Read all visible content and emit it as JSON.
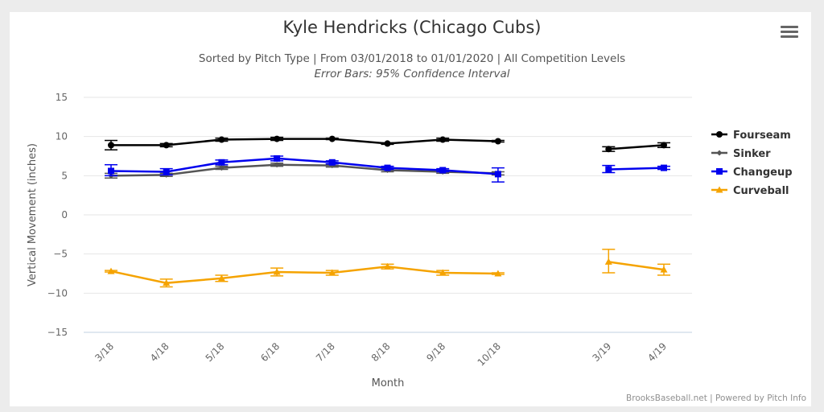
{
  "page": {
    "title": "Kyle Hendricks (Chicago Cubs)",
    "subtitle": "Sorted by Pitch Type | From 03/01/2018 to 01/01/2020 | All Competition Levels",
    "subtitle2": "Error Bars: 95% Confidence Interval",
    "credits": "BrooksBaseball.net | Powered by Pitch Info",
    "menu_icon": "hamburger-menu-icon"
  },
  "chart_data": {
    "type": "line",
    "title": "Kyle Hendricks (Chicago Cubs)",
    "subtitle": "Sorted by Pitch Type | From 03/01/2018 to 01/01/2020 | All Competition Levels",
    "xlabel": "Month",
    "ylabel": "Vertical Movement (inches)",
    "ylim": [
      -15,
      15
    ],
    "yticks": [
      15,
      10,
      5,
      0,
      -5,
      -10,
      -15
    ],
    "grid": true,
    "legend_position": "right",
    "categories": [
      "3/18",
      "4/18",
      "5/18",
      "6/18",
      "7/18",
      "8/18",
      "9/18",
      "10/18",
      "3/19",
      "4/19"
    ],
    "category_slots": [
      0,
      1,
      2,
      3,
      4,
      5,
      6,
      7,
      9,
      10
    ],
    "series": [
      {
        "name": "Fourseam",
        "color": "#000000",
        "marker": "circle",
        "values": [
          8.9,
          8.9,
          9.6,
          9.7,
          9.7,
          9.1,
          9.6,
          9.4,
          8.4,
          8.9
        ],
        "err_low": [
          8.3,
          8.7,
          9.4,
          9.5,
          9.6,
          9.0,
          9.4,
          9.3,
          8.1,
          8.6
        ],
        "err_high": [
          9.5,
          9.1,
          9.8,
          9.9,
          9.8,
          9.2,
          9.8,
          9.5,
          8.7,
          9.2
        ]
      },
      {
        "name": "Sinker",
        "color": "#555555",
        "marker": "diamond",
        "values": [
          5.0,
          5.1,
          6.0,
          6.4,
          6.3,
          5.7,
          5.5,
          5.3,
          null,
          null
        ],
        "err_low": [
          4.7,
          4.9,
          5.8,
          6.2,
          6.1,
          5.5,
          5.3,
          5.1,
          null,
          null
        ],
        "err_high": [
          5.3,
          5.3,
          6.2,
          6.6,
          6.5,
          5.9,
          5.7,
          5.5,
          null,
          null
        ]
      },
      {
        "name": "Changeup",
        "color": "#0000ee",
        "marker": "square",
        "values": [
          5.6,
          5.5,
          6.7,
          7.2,
          6.7,
          6.0,
          5.7,
          5.2,
          5.8,
          6.0
        ],
        "err_low": [
          5.0,
          5.1,
          6.4,
          6.9,
          6.5,
          5.8,
          5.5,
          4.2,
          5.4,
          5.8
        ],
        "err_high": [
          6.4,
          5.9,
          7.0,
          7.5,
          6.9,
          6.2,
          5.9,
          6.0,
          6.3,
          6.2
        ]
      },
      {
        "name": "Curveball",
        "color": "#f5a300",
        "marker": "triangle",
        "values": [
          -7.2,
          -8.7,
          -8.1,
          -7.3,
          -7.4,
          -6.6,
          -7.4,
          -7.5,
          -6.0,
          -7.0
        ],
        "err_low": [
          -7.3,
          -9.2,
          -8.5,
          -7.8,
          -7.7,
          -6.9,
          -7.7,
          -7.6,
          -7.4,
          -7.7
        ],
        "err_high": [
          -7.1,
          -8.2,
          -7.7,
          -6.8,
          -7.1,
          -6.3,
          -7.1,
          -7.4,
          -4.4,
          -6.3
        ]
      }
    ]
  }
}
